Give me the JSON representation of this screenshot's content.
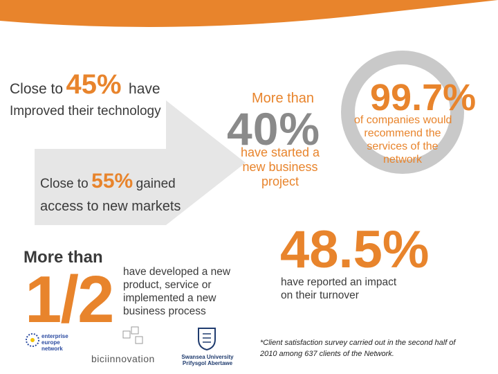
{
  "colors": {
    "accent": "#E8842C",
    "text_dark": "#3a3a3a",
    "arrow_fill": "#E6E6E6",
    "donut_ring": "#C9C9C9"
  },
  "stat_technology": {
    "prefix": "Close to",
    "value": "45%",
    "suffix": "have",
    "line2": "Improved their technology"
  },
  "stat_markets": {
    "prefix": "Close to",
    "value": "55%",
    "suffix": "gained",
    "line2": "access to new markets"
  },
  "stat_business": {
    "intro": "More than",
    "value": "40%",
    "line1": "have started a",
    "line2": "new business",
    "line3": "project"
  },
  "stat_recommend": {
    "value": "99.7%",
    "line1": "of companies would",
    "line2": "recommend the",
    "line3": "services of the",
    "line4": "network",
    "ring_fill_percent": 99.7
  },
  "stat_product": {
    "intro": "More than",
    "value": "1/2",
    "line1": "have developed a new",
    "line2": "product, service or",
    "line3": "implemented a new",
    "line4": "business process"
  },
  "stat_turnover": {
    "value": "48.5%",
    "line1": "have reported an impact",
    "line2": "on their turnover"
  },
  "footnote": {
    "line1": "*Client satisfaction survey carried out in the second half of",
    "line2": "2010 among 637 clients of the Network."
  },
  "logos": {
    "een": {
      "line1": "enterprise",
      "line2": "europe",
      "line3": "network",
      "icon": "star-circle-icon"
    },
    "bic": {
      "text": "biciinnovation",
      "icon": "cube-cluster-icon"
    },
    "swansea": {
      "line1": "Swansea University",
      "line2": "Prifysgol Abertawe",
      "icon": "crest-shield-icon"
    }
  }
}
